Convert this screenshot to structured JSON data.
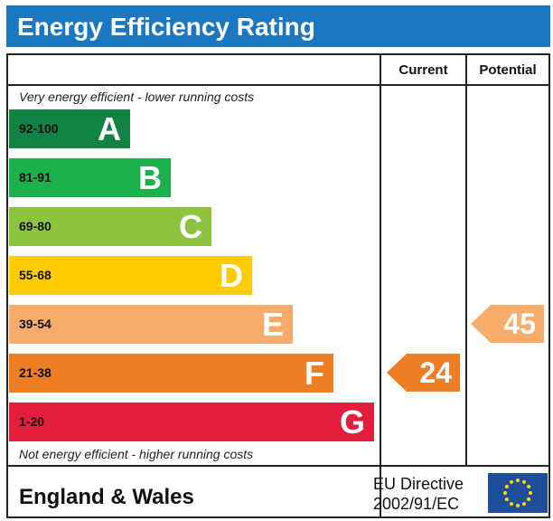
{
  "header": {
    "title": "Energy Efficiency Rating"
  },
  "columns": {
    "current_label": "Current",
    "potential_label": "Potential"
  },
  "captions": {
    "top": "Very energy efficient - lower running costs",
    "bottom": "Not energy efficient - higher running costs"
  },
  "footer": {
    "region": "England & Wales",
    "directive_line1": "EU Directive",
    "directive_line2": "2002/91/EC"
  },
  "chart_data": {
    "type": "bar",
    "title": "Energy Efficiency Rating",
    "categories": [
      "A",
      "B",
      "C",
      "D",
      "E",
      "F",
      "G"
    ],
    "ranges": [
      "92-100",
      "81-91",
      "69-80",
      "55-68",
      "39-54",
      "21-38",
      "1-20"
    ],
    "colors": [
      "#138345",
      "#1cb14d",
      "#8dc43f",
      "#ffcc00",
      "#f7ac6b",
      "#ee7d24",
      "#e31d3c"
    ],
    "current": {
      "label": "Current",
      "value": 24,
      "band": "F",
      "color": "#ee7d24"
    },
    "potential": {
      "label": "Potential",
      "value": 45,
      "band": "E",
      "color": "#f7ac6b"
    }
  }
}
